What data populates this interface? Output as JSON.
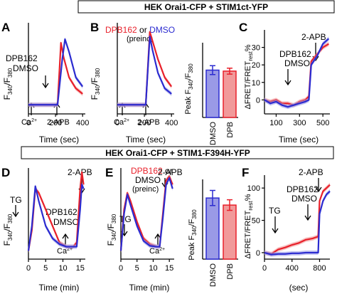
{
  "colors": {
    "red": "#e8202a",
    "blue": "#2b2bd0",
    "red_fill": "#f19a9a",
    "blue_fill": "#9a9ae6",
    "black": "#000000"
  },
  "banners": {
    "top": "HEK Orai1-CFP + STIM1ct-YFP",
    "bottom": "HEK Orai1-CFP + STIM1-F394H-YFP"
  },
  "panel_letters": {
    "A": "A",
    "B": "B",
    "C": "C",
    "D": "D",
    "E": "E",
    "F": "F"
  },
  "axis_text": {
    "ratio_f340": "F",
    "ratio_f340_sub": "340",
    "ratio_slash": "/F",
    "ratio_f380_sub": "380",
    "peak_prefix": "Peak F",
    "fret_prefix": "ΔFRET/FRET",
    "fret_sub": "rest",
    "fret_suffix": "%",
    "time_sec": "Time (sec)",
    "time_min": "Time (min)",
    "sec": "(sec)"
  },
  "labels": {
    "dpb162": "DPB162",
    "dmso": "DMSO",
    "or": "or",
    "preinc": "(preinc)",
    "two_apb": "2-APB",
    "ca": "Ca",
    "ca_sup": "2+",
    "tg": "TG",
    "bar_dmso": "DMSO",
    "bar_dpb": "DPB"
  },
  "chart_data": [
    {
      "panel": "A",
      "type": "line",
      "xlabel": "Time (sec)",
      "ylabel": "F340/F380",
      "xticks": [
        0,
        200,
        400
      ],
      "xlim": [
        0,
        420
      ],
      "series": [
        {
          "name": "DPB162",
          "color": "red",
          "x": [
            0,
            100,
            200,
            215,
            240,
            260,
            300,
            350,
            400
          ],
          "y": [
            0.1,
            0.1,
            0.1,
            0.1,
            0.78,
            0.62,
            0.4,
            0.28,
            0.22
          ]
        },
        {
          "name": "DMSO",
          "color": "blue",
          "x": [
            0,
            100,
            200,
            215,
            250,
            270,
            300,
            350,
            400
          ],
          "y": [
            0.1,
            0.1,
            0.1,
            0.1,
            0.6,
            0.82,
            0.68,
            0.4,
            0.3
          ]
        }
      ],
      "annotations": [
        "Ca2+",
        "2-APB"
      ]
    },
    {
      "panel": "B",
      "type": "line",
      "xlabel": "Time (sec)",
      "ylabel": "F340/F380",
      "xticks": [
        0,
        200,
        400
      ],
      "xlim": [
        0,
        420
      ],
      "series": [
        {
          "name": "DPB162",
          "color": "red",
          "x": [
            0,
            100,
            200,
            210,
            240,
            260,
            300,
            350,
            400
          ],
          "y": [
            0.1,
            0.1,
            0.1,
            0.1,
            0.9,
            0.8,
            0.6,
            0.4,
            0.3
          ]
        },
        {
          "name": "DMSO",
          "color": "blue",
          "x": [
            0,
            100,
            200,
            210,
            240,
            260,
            300,
            350,
            400
          ],
          "y": [
            0.1,
            0.1,
            0.1,
            0.1,
            0.85,
            0.7,
            0.45,
            0.28,
            0.22
          ]
        }
      ],
      "annotations": [
        "Ca2+",
        "2-APB"
      ]
    },
    {
      "panel": "B-bar",
      "type": "bar",
      "ylabel": "Peak F340/F380",
      "categories": [
        "DMSO",
        "DPB"
      ],
      "values": [
        0.95,
        0.93
      ],
      "errors": [
        0.09,
        0.06
      ],
      "ylim": [
        0,
        1.5
      ]
    },
    {
      "panel": "C",
      "type": "line",
      "xlabel": "Time (sec)",
      "ylabel": "ΔFRET/FRETrest%",
      "xticks": [
        100,
        300,
        500
      ],
      "yticks": [
        0,
        10,
        20,
        30
      ],
      "xlim": [
        0,
        560
      ],
      "ylim": [
        -8,
        40
      ],
      "series": [
        {
          "name": "DPB162",
          "color": "red",
          "x": [
            0,
            50,
            100,
            150,
            200,
            250,
            300,
            350,
            380,
            400,
            450,
            500,
            550
          ],
          "y": [
            0,
            -1,
            0,
            -2,
            -2,
            -3,
            -1,
            0,
            2,
            22,
            26,
            30,
            32
          ]
        },
        {
          "name": "DMSO",
          "color": "blue",
          "x": [
            0,
            50,
            100,
            150,
            200,
            250,
            300,
            350,
            380,
            400,
            450,
            500,
            550
          ],
          "y": [
            0,
            -2,
            -1,
            -3,
            -4,
            -3,
            -2,
            -1,
            0,
            20,
            25,
            32,
            35
          ]
        }
      ],
      "annotations": [
        "2-APB"
      ]
    },
    {
      "panel": "D",
      "type": "line",
      "xlabel": "Time (min)",
      "ylabel": "F340/F380",
      "xticks": [
        0,
        5,
        10,
        15
      ],
      "xlim": [
        0,
        16.5
      ],
      "series": [
        {
          "name": "DPB162",
          "color": "red",
          "x": [
            0,
            1,
            2,
            3,
            5,
            7,
            9,
            11,
            12,
            13,
            14,
            15,
            15.5,
            16
          ],
          "y": [
            0.1,
            0.35,
            0.85,
            0.8,
            0.6,
            0.4,
            0.2,
            0.15,
            0.15,
            0.15,
            0.2,
            0.85,
            1.05,
            0.9
          ]
        },
        {
          "name": "DMSO",
          "color": "blue",
          "x": [
            0,
            1,
            2,
            3,
            5,
            7,
            9,
            11,
            12,
            13,
            14,
            15,
            15.5,
            16
          ],
          "y": [
            0.1,
            0.4,
            0.88,
            0.7,
            0.4,
            0.25,
            0.18,
            0.15,
            0.15,
            0.15,
            0.15,
            0.6,
            0.9,
            0.85
          ]
        }
      ],
      "annotations": [
        "TG",
        "2-APB"
      ]
    },
    {
      "panel": "E",
      "type": "line",
      "xlabel": "Time (min)",
      "ylabel": "F340/F380",
      "xticks": [
        0,
        5,
        10,
        15
      ],
      "xlim": [
        0,
        16.5
      ],
      "series": [
        {
          "name": "DPB162",
          "color": "red",
          "x": [
            0,
            1,
            2,
            3,
            5,
            7,
            9,
            11,
            12,
            13,
            14,
            15,
            16
          ],
          "y": [
            0.1,
            0.6,
            0.8,
            0.7,
            0.45,
            0.25,
            0.18,
            0.15,
            0.15,
            0.55,
            0.95,
            1.0,
            0.9
          ]
        },
        {
          "name": "DMSO",
          "color": "blue",
          "x": [
            0,
            1,
            2,
            3,
            5,
            7,
            9,
            11,
            12,
            13,
            14,
            15,
            16
          ],
          "y": [
            0.1,
            0.55,
            0.78,
            0.65,
            0.4,
            0.22,
            0.16,
            0.15,
            0.15,
            0.5,
            0.9,
            0.98,
            0.85
          ]
        }
      ],
      "annotations": [
        "TG",
        "Ca2+",
        "2-APB"
      ]
    },
    {
      "panel": "E-bar",
      "type": "bar",
      "ylabel": "Peak F340/F380",
      "categories": [
        "DMSO",
        "DPB"
      ],
      "values": [
        1.38,
        1.22
      ],
      "errors": [
        0.17,
        0.12
      ],
      "ylim": [
        0,
        1.8
      ]
    },
    {
      "panel": "F",
      "type": "line",
      "xlabel": "Time (sec)",
      "ylabel": "ΔFRET/FRETrest%",
      "xticks": [
        0,
        400,
        800
      ],
      "yticks": [
        0,
        50,
        100
      ],
      "xlim": [
        0,
        950
      ],
      "ylim": [
        -10,
        120
      ],
      "series": [
        {
          "name": "DPB162",
          "color": "red",
          "x": [
            0,
            100,
            200,
            300,
            400,
            500,
            600,
            700,
            780,
            800,
            850,
            900,
            950
          ],
          "y": [
            0,
            -2,
            5,
            8,
            12,
            15,
            20,
            22,
            25,
            80,
            95,
            100,
            105
          ]
        },
        {
          "name": "DMSO",
          "color": "blue",
          "x": [
            0,
            100,
            200,
            300,
            400,
            500,
            600,
            700,
            780,
            800,
            850,
            900,
            950
          ],
          "y": [
            0,
            -3,
            -2,
            -2,
            -1,
            -1,
            0,
            0,
            0,
            60,
            80,
            90,
            95
          ]
        }
      ],
      "annotations": [
        "TG",
        "2-APB"
      ]
    }
  ]
}
